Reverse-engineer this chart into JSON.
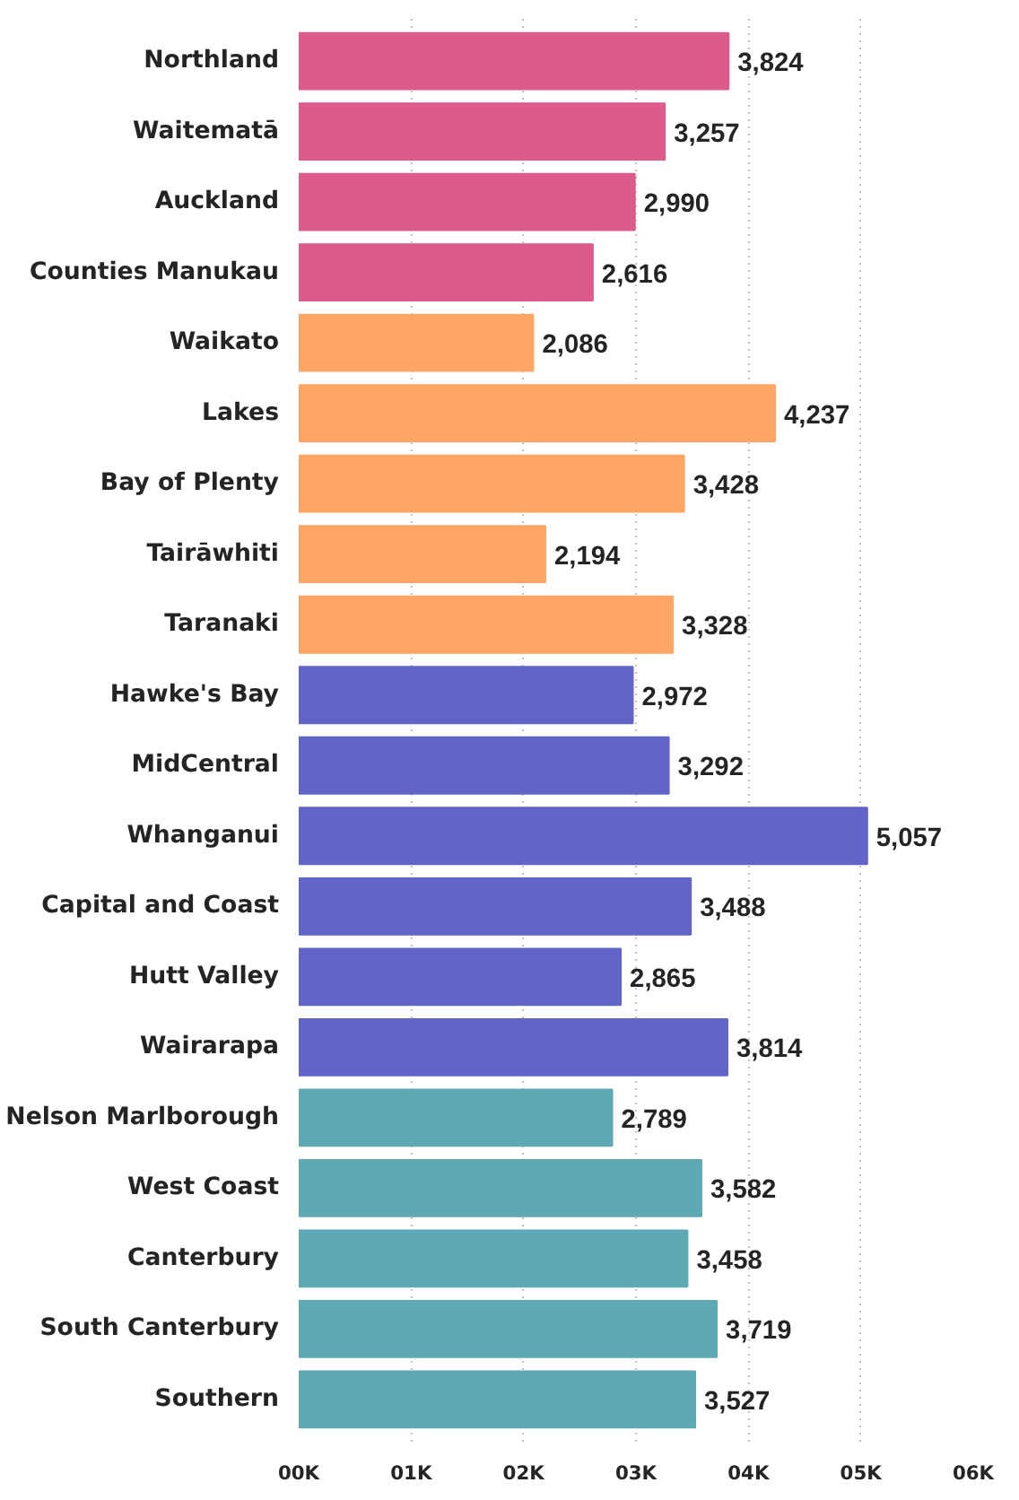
{
  "chart_data": {
    "type": "bar",
    "orientation": "horizontal",
    "categories": [
      "Northland",
      "Waitematā",
      "Auckland",
      "Counties Manukau",
      "Waikato",
      "Lakes",
      "Bay of Plenty",
      "Tairāwhiti",
      "Taranaki",
      "Hawke's Bay",
      "MidCentral",
      "Whanganui",
      "Capital and Coast",
      "Hutt Valley",
      "Wairarapa",
      "Nelson Marlborough",
      "West Coast",
      "Canterbury",
      "South Canterbury",
      "Southern"
    ],
    "values": [
      3824,
      3257,
      2990,
      2616,
      2086,
      4237,
      3428,
      2194,
      3328,
      2972,
      3292,
      5057,
      3488,
      2865,
      3814,
      2789,
      3582,
      3458,
      3719,
      3527
    ],
    "colors": [
      "#dc5b8a",
      "#dc5b8a",
      "#dc5b8a",
      "#dc5b8a",
      "#ffa666",
      "#ffa666",
      "#ffa666",
      "#ffa666",
      "#ffa666",
      "#6264c8",
      "#6264c8",
      "#6264c8",
      "#6264c8",
      "#6264c8",
      "#6264c8",
      "#5fa9b5",
      "#5fa9b5",
      "#5fa9b5",
      "#5fa9b5",
      "#5fa9b5"
    ],
    "xlim": [
      0,
      6000
    ],
    "xticks": [
      {
        "value": 0,
        "label": "00K"
      },
      {
        "value": 1000,
        "label": "01K"
      },
      {
        "value": 2000,
        "label": "02K"
      },
      {
        "value": 3000,
        "label": "03K"
      },
      {
        "value": 4000,
        "label": "04K"
      },
      {
        "value": 5000,
        "label": "05K"
      },
      {
        "value": 6000,
        "label": "06K"
      }
    ],
    "value_labels": [
      "3,824",
      "3,257",
      "2,990",
      "2,616",
      "2,086",
      "4,237",
      "3,428",
      "2,194",
      "3,328",
      "2,972",
      "3,292",
      "5,057",
      "3,488",
      "2,865",
      "3,814",
      "2,789",
      "3,582",
      "3,458",
      "3,719",
      "3,527"
    ],
    "grid": "x"
  }
}
